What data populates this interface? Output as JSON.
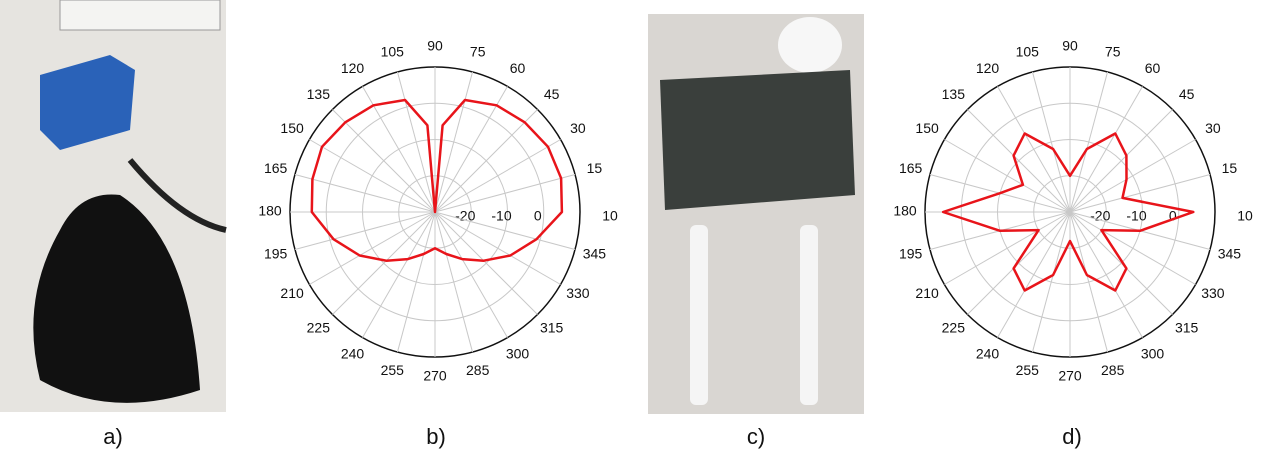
{
  "figure": {
    "captions": [
      "a)",
      "b)",
      "c)",
      "d)"
    ]
  },
  "chart_data": [
    {
      "type": "polar",
      "rlim": [
        -30,
        10
      ],
      "rticks": [
        -20,
        -10,
        0,
        10
      ],
      "thetaticks": [
        15,
        30,
        45,
        60,
        75,
        90,
        105,
        120,
        135,
        150,
        165,
        180,
        195,
        210,
        225,
        240,
        255,
        270,
        285,
        300,
        315,
        330,
        345
      ],
      "theta": [
        0,
        15,
        30,
        45,
        60,
        75,
        85,
        90,
        95,
        105,
        120,
        135,
        150,
        165,
        180,
        195,
        210,
        225,
        240,
        255,
        270,
        285,
        300,
        315,
        330,
        345
      ],
      "series": [
        {
          "color": "#e8141a",
          "values": [
            5,
            6,
            6,
            5,
            4,
            2,
            -6,
            -30,
            -6,
            2,
            4,
            5,
            6,
            5,
            4,
            -1,
            -6,
            -11,
            -15,
            -18,
            -20,
            -18,
            -15,
            -11,
            -6,
            -1
          ]
        }
      ]
    },
    {
      "type": "polar",
      "rlim": [
        -30,
        10
      ],
      "rticks": [
        -20,
        -10,
        0,
        10
      ],
      "thetaticks": [
        15,
        30,
        45,
        60,
        75,
        90,
        105,
        120,
        135,
        150,
        165,
        180,
        195,
        210,
        225,
        240,
        255,
        270,
        285,
        300,
        315,
        330,
        345
      ],
      "theta": [
        0,
        15,
        30,
        45,
        60,
        75,
        90,
        105,
        120,
        135,
        150,
        165,
        180,
        195,
        210,
        225,
        240,
        255,
        270,
        285,
        300,
        315,
        330,
        345
      ],
      "series": [
        {
          "color": "#e8141a",
          "values": [
            4,
            -15,
            -12,
            -8,
            -5,
            -12,
            -20,
            -12,
            -5,
            -8,
            -15,
            -10,
            5,
            -10,
            -20,
            -8,
            -5,
            -12,
            -22,
            -12,
            -5,
            -8,
            -20,
            -10
          ]
        }
      ]
    }
  ]
}
